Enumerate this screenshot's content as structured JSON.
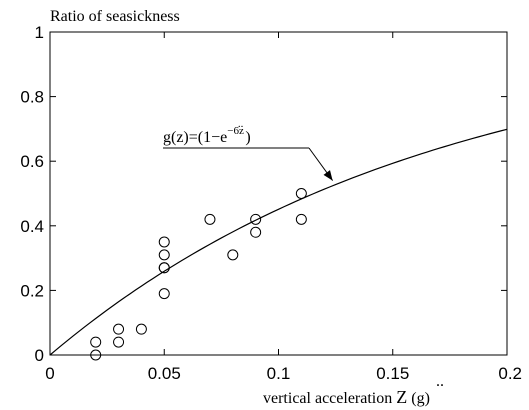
{
  "chart_data": {
    "type": "scatter",
    "title": "Ratio of seasickness",
    "xlabel": "vertical acceleration",
    "xlabel_symbol": "Z",
    "xlabel_unit": "(g)",
    "ylabel": "",
    "xlim": [
      0,
      0.2
    ],
    "ylim": [
      0,
      1
    ],
    "x_ticks": [
      0,
      0.05,
      0.1,
      0.15,
      0.2
    ],
    "x_tick_labels": [
      "0",
      "0.05",
      "0.1",
      "0.15",
      "0.2"
    ],
    "y_ticks": [
      0,
      0.2,
      0.4,
      0.6,
      0.8,
      1
    ],
    "y_tick_labels": [
      "0",
      "0.2",
      "0.4",
      "0.6",
      "0.8",
      "1"
    ],
    "grid": false,
    "series": [
      {
        "kind": "points",
        "marker": "open-circle",
        "x": [
          0.02,
          0.02,
          0.03,
          0.03,
          0.04,
          0.05,
          0.05,
          0.05,
          0.05,
          0.05,
          0.07,
          0.08,
          0.09,
          0.09,
          0.11,
          0.11
        ],
        "y": [
          0.0,
          0.04,
          0.04,
          0.08,
          0.08,
          0.19,
          0.27,
          0.27,
          0.31,
          0.35,
          0.42,
          0.31,
          0.38,
          0.42,
          0.42,
          0.5
        ]
      },
      {
        "kind": "curve",
        "function": "1 - exp(-6 z)",
        "x_range": [
          0,
          0.2
        ]
      }
    ],
    "annotation": {
      "text_prefix": "g(z)=(1−e",
      "text_exponent": "−6z",
      "text_suffix": ")",
      "points_to_x": 0.125
    }
  }
}
